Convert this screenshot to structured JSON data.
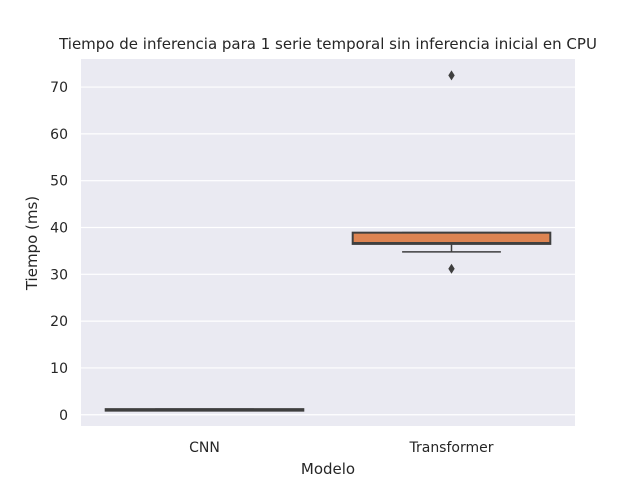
{
  "chart_data": {
    "type": "box",
    "title": "Tiempo de inferencia para 1 serie temporal sin inferencia inicial en CPU",
    "xlabel": "Modelo",
    "ylabel": "Tiempo (ms)",
    "categories": [
      "CNN",
      "Transformer"
    ],
    "ylim": [
      -2.4,
      76
    ],
    "yticks": [
      0,
      10,
      20,
      30,
      40,
      50,
      60,
      70
    ],
    "grid": true,
    "series": [
      {
        "category": "CNN",
        "color": "#5f6c80",
        "whisker_low": 1.0,
        "q1": 1.0,
        "median": 1.1,
        "q3": 1.2,
        "whisker_high": 1.2,
        "outliers": []
      },
      {
        "category": "Transformer",
        "color": "#dd8452",
        "whisker_low": 34.8,
        "q1": 36.5,
        "median": 36.7,
        "q3": 38.9,
        "whisker_high": 38.9,
        "outliers": [
          31.2,
          72.5
        ]
      }
    ]
  }
}
